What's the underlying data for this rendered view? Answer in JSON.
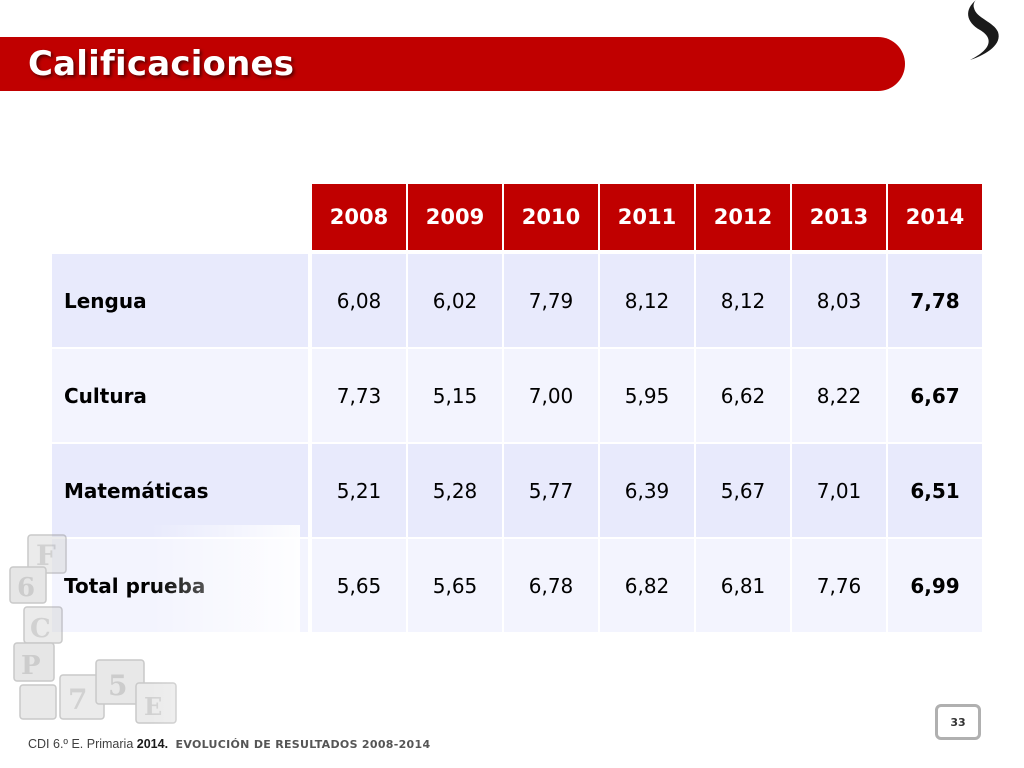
{
  "slide": {
    "title": "Calificaciones",
    "page_number": "33"
  },
  "footer": {
    "prefix": "CDI 6.º E. Primaria",
    "year": "2014.",
    "section": "EVOLUCIÓN DE RESULTADOS 2008-2014"
  },
  "table": {
    "years": [
      "2008",
      "2009",
      "2010",
      "2011",
      "2012",
      "2013",
      "2014"
    ],
    "rows": [
      {
        "label": "Lengua",
        "values": [
          "6,08",
          "6,02",
          "7,79",
          "8,12",
          "8,12",
          "8,03",
          "7,78"
        ]
      },
      {
        "label": "Cultura",
        "values": [
          "7,73",
          "5,15",
          "7,00",
          "5,95",
          "6,62",
          "8,22",
          "6,67"
        ]
      },
      {
        "label": "Matemáticas",
        "values": [
          "5,21",
          "5,28",
          "5,77",
          "6,39",
          "5,67",
          "7,01",
          "6,51"
        ]
      },
      {
        "label": "Total prueba",
        "values": [
          "5,65",
          "5,65",
          "6,78",
          "6,82",
          "6,81",
          "7,76",
          "6,99"
        ]
      }
    ]
  },
  "colors": {
    "accent": "#c00000",
    "row_tint_a": "#e8eafc",
    "row_tint_b": "#f3f4fe"
  },
  "decorations": {
    "logo": "swoosh-logo-icon",
    "image": "toy-blocks-illustration"
  }
}
